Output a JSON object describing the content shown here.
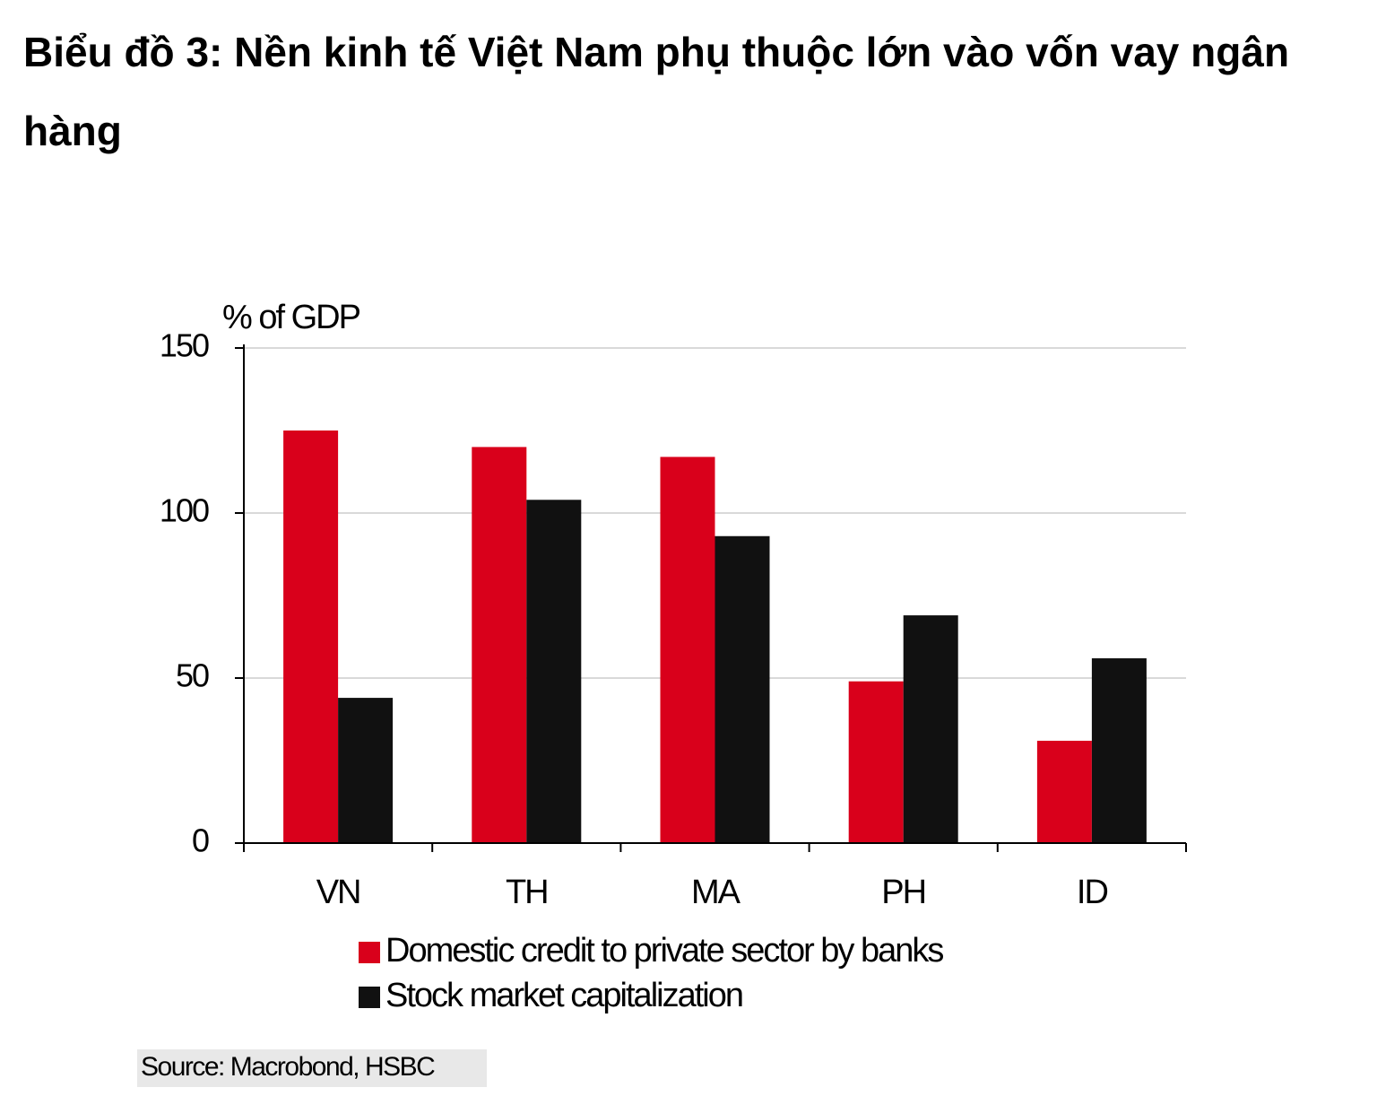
{
  "chart_data": {
    "type": "bar",
    "title": "Biểu đồ 3: Nền kinh tế Việt Nam phụ thuộc lớn vào vốn vay ngân hàng",
    "y_label": "% of GDP",
    "categories": [
      "VN",
      "TH",
      "MA",
      "PH",
      "ID"
    ],
    "series": [
      {
        "name": "Domestic credit to private sector by banks",
        "color": "#d9001b",
        "values": [
          125,
          120,
          117,
          49,
          31
        ]
      },
      {
        "name": "Stock market capitalization",
        "color": "#111111",
        "values": [
          44,
          104,
          93,
          69,
          56
        ]
      }
    ],
    "ylim": [
      0,
      150
    ],
    "yticks": [
      0,
      50,
      100,
      150
    ],
    "grid": true,
    "legend": "bottom",
    "source": "Source: Macrobond, HSBC"
  }
}
